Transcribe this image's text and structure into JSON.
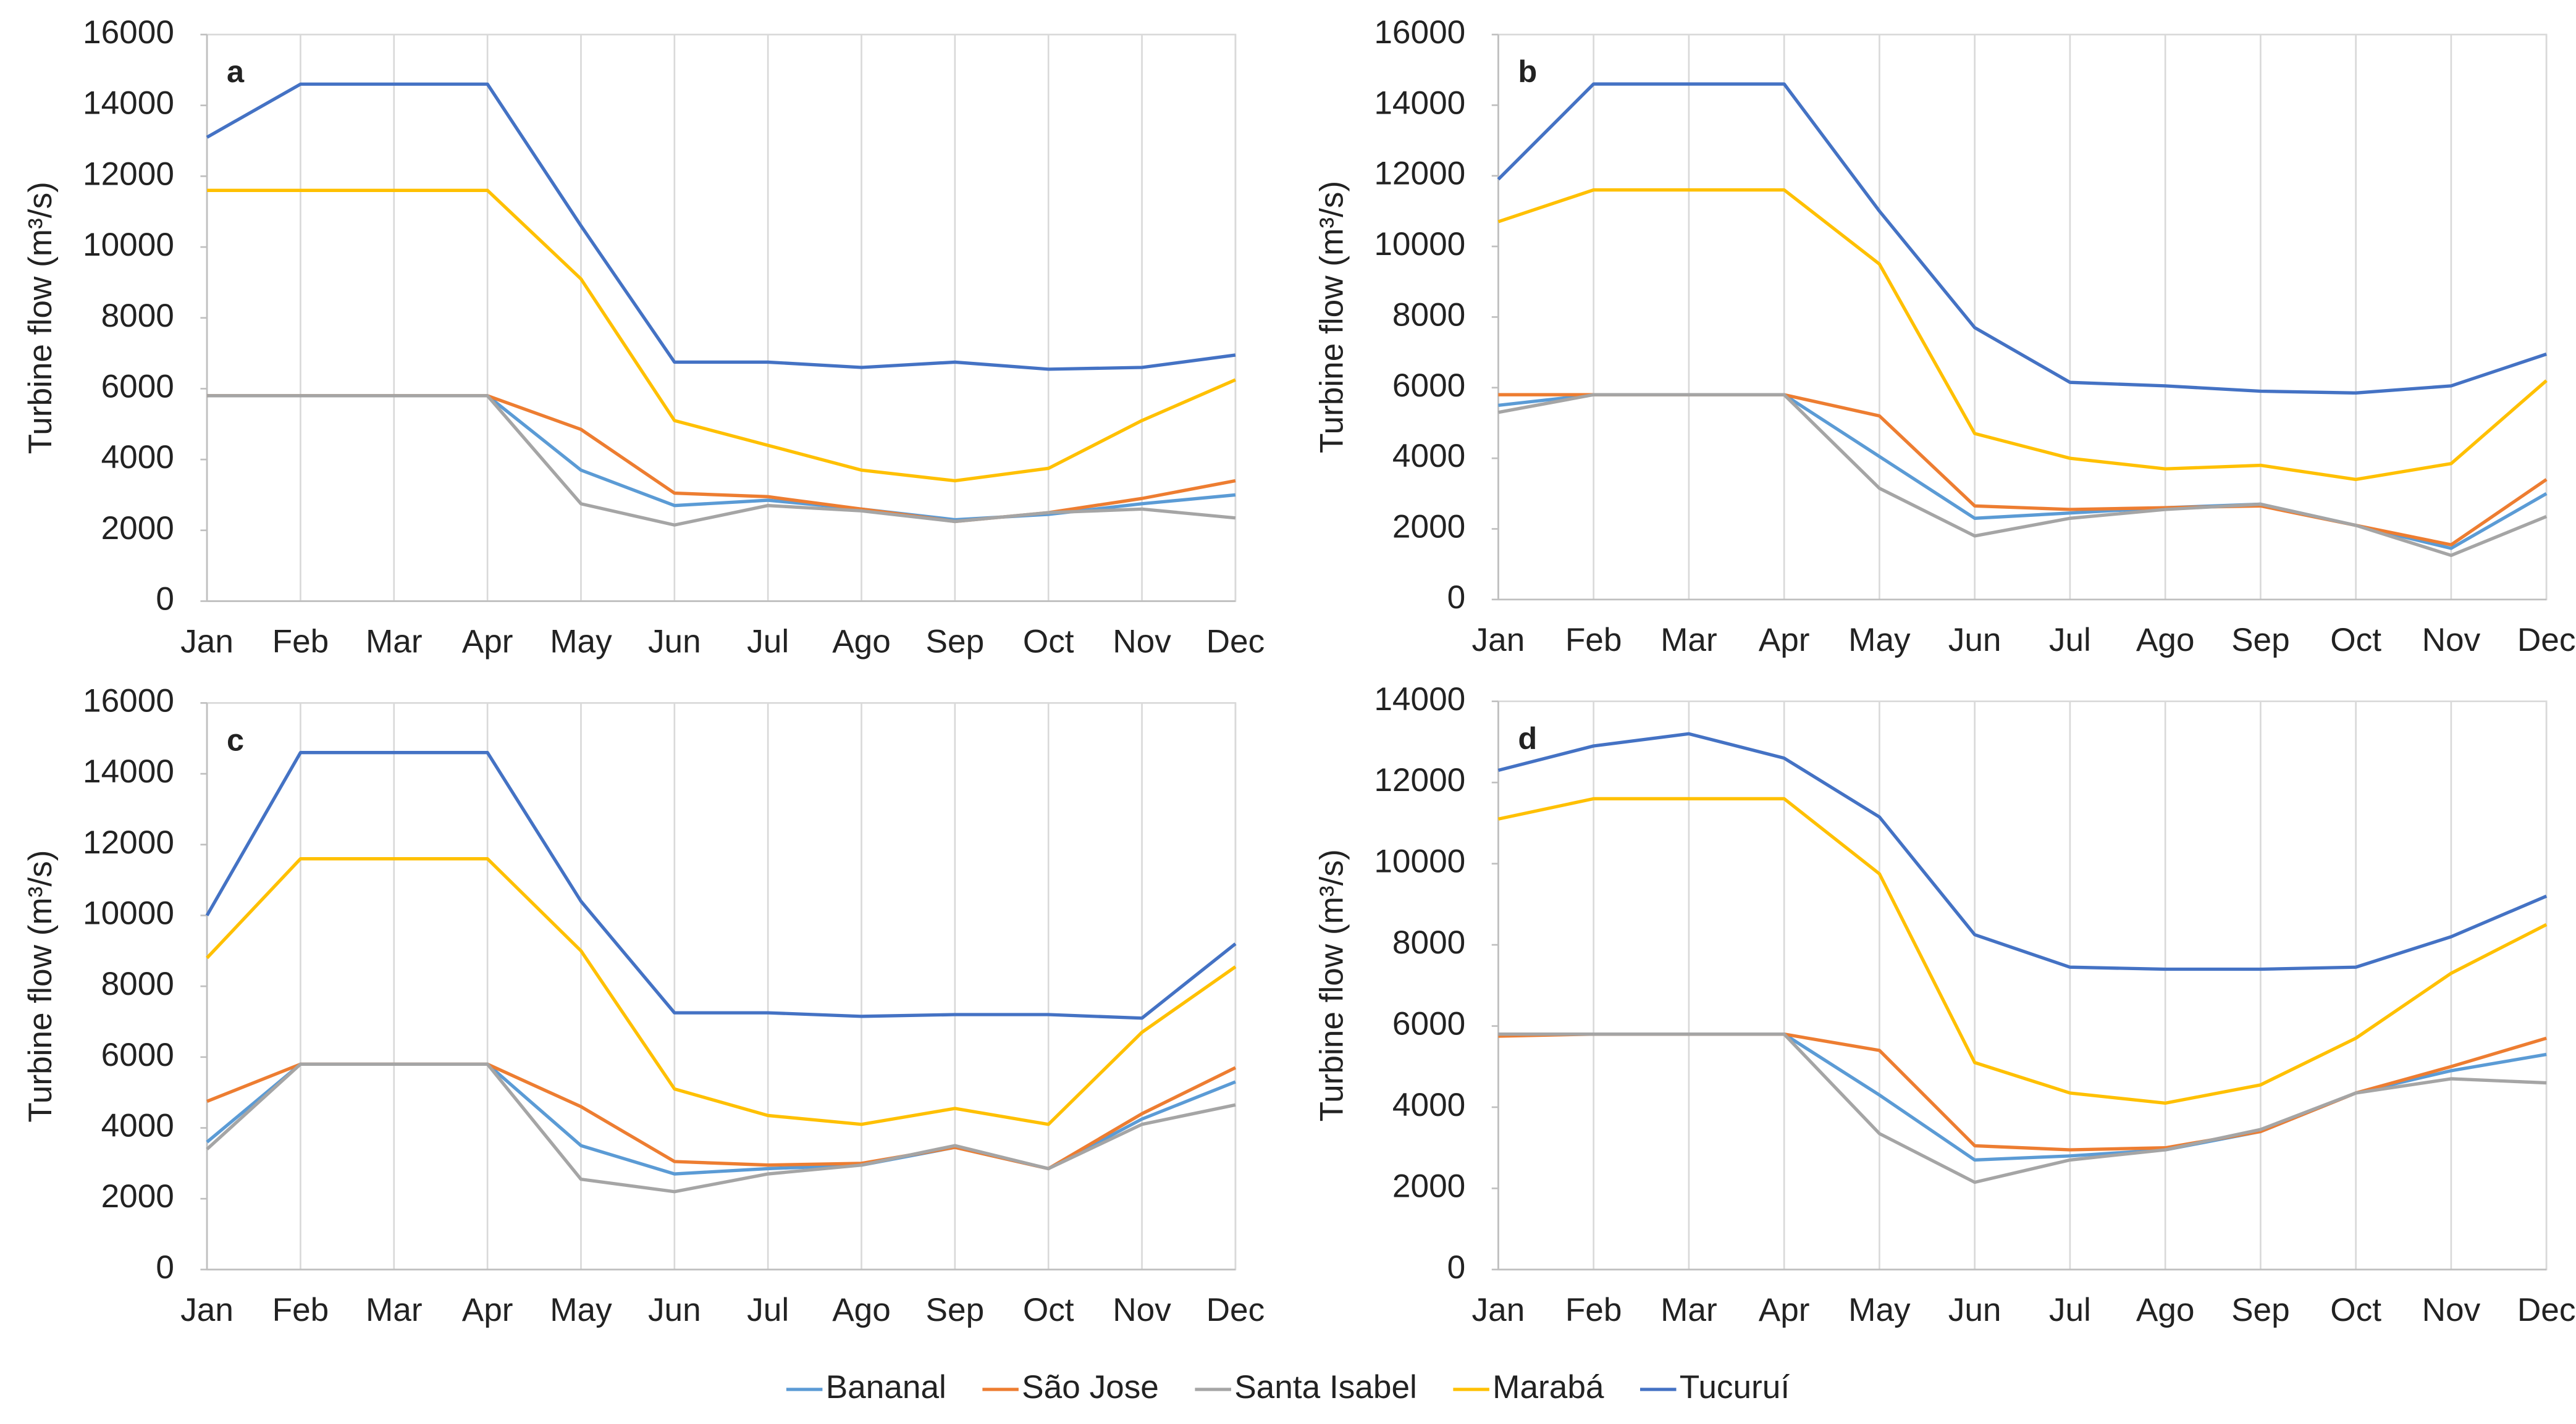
{
  "chart_data": [
    {
      "type": "line",
      "panel": "a",
      "y_label": "Turbine flow (m³/s)",
      "categories": [
        "Jan",
        "Feb",
        "Mar",
        "Apr",
        "May",
        "Jun",
        "Jul",
        "Ago",
        "Sep",
        "Oct",
        "Nov",
        "Dec"
      ],
      "ylim": [
        0,
        16000
      ],
      "yticks": [
        0,
        2000,
        4000,
        6000,
        8000,
        10000,
        12000,
        14000,
        16000
      ],
      "grid": true,
      "series": [
        {
          "name": "Bananal",
          "color": "#5b9bd5",
          "values": [
            5800,
            5800,
            5800,
            5800,
            3700,
            2700,
            2850,
            2600,
            2300,
            2450,
            2750,
            3000
          ]
        },
        {
          "name": "São Jose",
          "color": "#ed7d31",
          "values": [
            5800,
            5800,
            5800,
            5800,
            4850,
            3050,
            2950,
            2600,
            2250,
            2500,
            2900,
            3400
          ]
        },
        {
          "name": "Santa Isabel",
          "color": "#a5a5a5",
          "values": [
            5800,
            5800,
            5800,
            5800,
            2750,
            2150,
            2700,
            2550,
            2250,
            2500,
            2600,
            2350
          ]
        },
        {
          "name": "Marabá",
          "color": "#ffc000",
          "values": [
            11600,
            11600,
            11600,
            11600,
            9100,
            5100,
            4400,
            3700,
            3400,
            3750,
            5100,
            6250
          ]
        },
        {
          "name": "Tucuruí",
          "color": "#4472c4",
          "values": [
            13100,
            14600,
            14600,
            14600,
            10600,
            6750,
            6750,
            6600,
            6750,
            6550,
            6600,
            6950
          ]
        }
      ]
    },
    {
      "type": "line",
      "panel": "b",
      "y_label": "Turbine flow (m³/s)",
      "categories": [
        "Jan",
        "Feb",
        "Mar",
        "Apr",
        "May",
        "Jun",
        "Jul",
        "Ago",
        "Sep",
        "Oct",
        "Nov",
        "Dec"
      ],
      "ylim": [
        0,
        16000
      ],
      "yticks": [
        0,
        2000,
        4000,
        6000,
        8000,
        10000,
        12000,
        14000,
        16000
      ],
      "grid": true,
      "series": [
        {
          "name": "Bananal",
          "color": "#5b9bd5",
          "values": [
            5500,
            5800,
            5800,
            5800,
            4050,
            2300,
            2450,
            2600,
            2700,
            2100,
            1450,
            3000
          ]
        },
        {
          "name": "São Jose",
          "color": "#ed7d31",
          "values": [
            5800,
            5800,
            5800,
            5800,
            5200,
            2650,
            2550,
            2600,
            2650,
            2100,
            1550,
            3400
          ]
        },
        {
          "name": "Santa Isabel",
          "color": "#a5a5a5",
          "values": [
            5300,
            5800,
            5800,
            5800,
            3150,
            1800,
            2300,
            2550,
            2700,
            2100,
            1250,
            2350
          ]
        },
        {
          "name": "Marabá",
          "color": "#ffc000",
          "values": [
            10700,
            11600,
            11600,
            11600,
            9500,
            4700,
            4000,
            3700,
            3800,
            3400,
            3850,
            6200
          ]
        },
        {
          "name": "Tucuruí",
          "color": "#4472c4",
          "values": [
            11900,
            14600,
            14600,
            14600,
            11000,
            7700,
            6150,
            6050,
            5900,
            5850,
            6050,
            6950
          ]
        }
      ]
    },
    {
      "type": "line",
      "panel": "c",
      "y_label": "Turbine flow (m³/s)",
      "categories": [
        "Jan",
        "Feb",
        "Mar",
        "Apr",
        "May",
        "Jun",
        "Jul",
        "Ago",
        "Sep",
        "Oct",
        "Nov",
        "Dec"
      ],
      "ylim": [
        0,
        16000
      ],
      "yticks": [
        0,
        2000,
        4000,
        6000,
        8000,
        10000,
        12000,
        14000,
        16000
      ],
      "grid": true,
      "series": [
        {
          "name": "Bananal",
          "color": "#5b9bd5",
          "values": [
            3600,
            5800,
            5800,
            5800,
            3500,
            2700,
            2850,
            2950,
            3450,
            2850,
            4250,
            5300
          ]
        },
        {
          "name": "São Jose",
          "color": "#ed7d31",
          "values": [
            4750,
            5800,
            5800,
            5800,
            4600,
            3050,
            2950,
            3000,
            3450,
            2850,
            4400,
            5700
          ]
        },
        {
          "name": "Santa Isabel",
          "color": "#a5a5a5",
          "values": [
            3400,
            5800,
            5800,
            5800,
            2550,
            2200,
            2700,
            2950,
            3500,
            2850,
            4100,
            4650
          ]
        },
        {
          "name": "Marabá",
          "color": "#ffc000",
          "values": [
            8800,
            11600,
            11600,
            11600,
            9000,
            5100,
            4350,
            4100,
            4550,
            4100,
            6700,
            8550
          ]
        },
        {
          "name": "Tucuruí",
          "color": "#4472c4",
          "values": [
            10000,
            14600,
            14600,
            14600,
            10400,
            7250,
            7250,
            7150,
            7200,
            7200,
            7100,
            9200
          ]
        }
      ]
    },
    {
      "type": "line",
      "panel": "d",
      "y_label": "Turbine flow (m³/s)",
      "categories": [
        "Jan",
        "Feb",
        "Mar",
        "Apr",
        "May",
        "Jun",
        "Jul",
        "Ago",
        "Sep",
        "Oct",
        "Nov",
        "Dec"
      ],
      "ylim": [
        0,
        14000
      ],
      "yticks": [
        0,
        2000,
        4000,
        6000,
        8000,
        10000,
        12000,
        14000
      ],
      "grid": true,
      "series": [
        {
          "name": "Bananal",
          "color": "#5b9bd5",
          "values": [
            5800,
            5800,
            5800,
            5800,
            4300,
            2700,
            2800,
            2950,
            3400,
            4350,
            4900,
            5300
          ]
        },
        {
          "name": "São Jose",
          "color": "#ed7d31",
          "values": [
            5750,
            5800,
            5800,
            5800,
            5400,
            3050,
            2950,
            3000,
            3400,
            4350,
            5000,
            5700
          ]
        },
        {
          "name": "Santa Isabel",
          "color": "#a5a5a5",
          "values": [
            5800,
            5800,
            5800,
            5800,
            3350,
            2150,
            2700,
            2950,
            3450,
            4350,
            4700,
            4600
          ]
        },
        {
          "name": "Marabá",
          "color": "#ffc000",
          "values": [
            11100,
            11600,
            11600,
            11600,
            9750,
            5100,
            4350,
            4100,
            4550,
            5700,
            7300,
            8500
          ]
        },
        {
          "name": "Tucuruí",
          "color": "#4472c4",
          "values": [
            12300,
            12900,
            13200,
            12600,
            11150,
            8250,
            7450,
            7400,
            7400,
            7450,
            8200,
            9200
          ]
        }
      ]
    }
  ]
}
